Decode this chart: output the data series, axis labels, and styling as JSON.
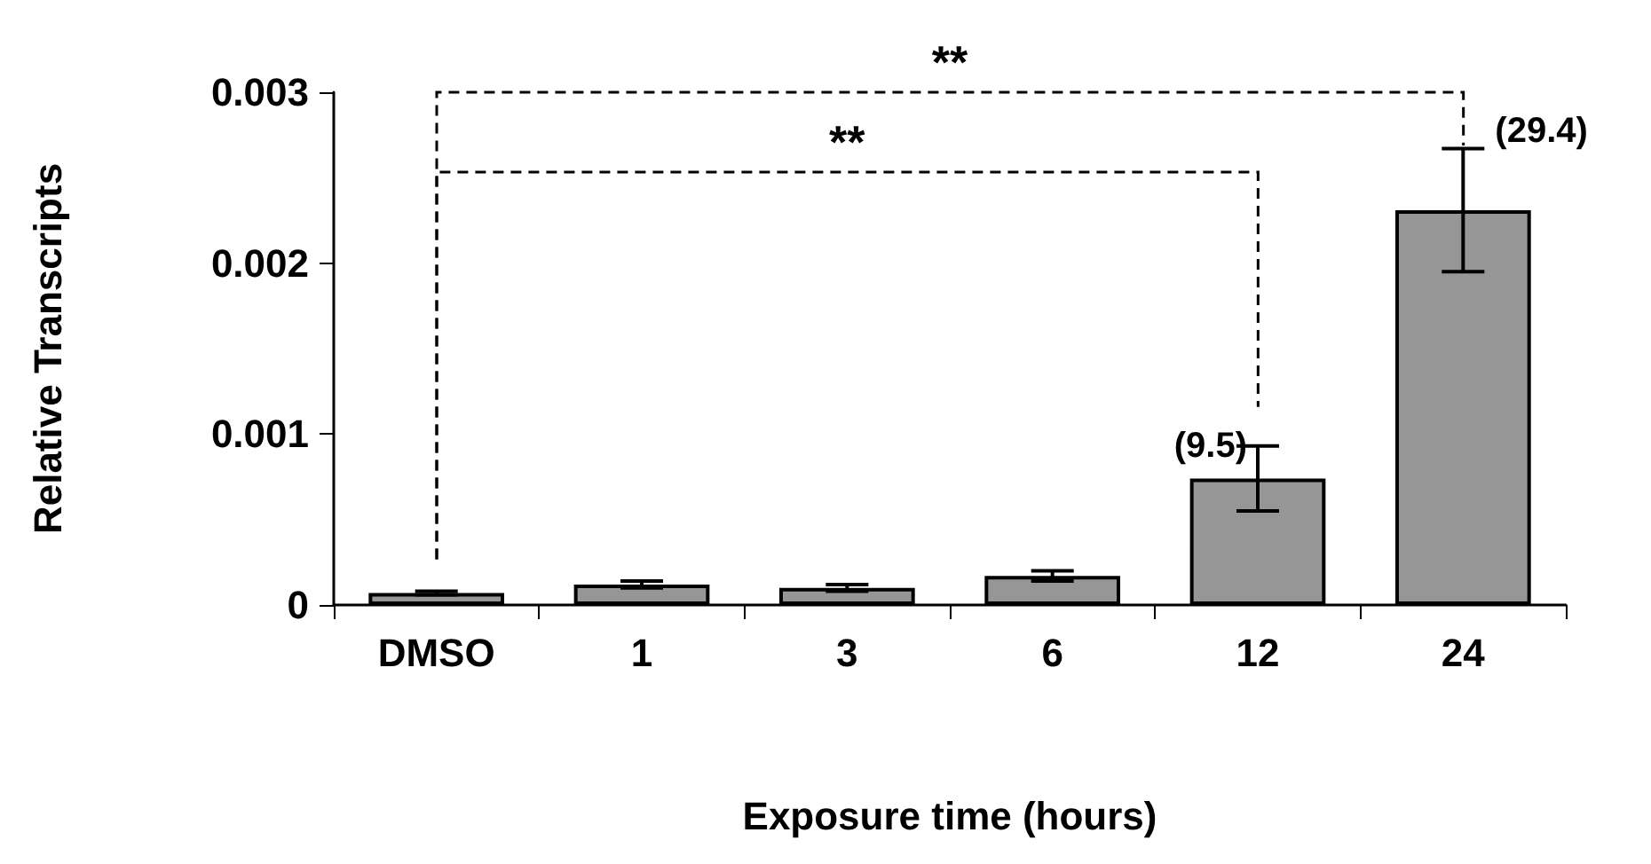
{
  "chart_data": {
    "type": "bar",
    "xlabel": "Exposure time (hours)",
    "ylabel": "Relative Transcripts",
    "categories": [
      "DMSO",
      "1",
      "3",
      "6",
      "12",
      "24"
    ],
    "values": [
      7e-05,
      0.00012,
      0.0001,
      0.00017,
      0.00074,
      0.00231
    ],
    "errors": [
      1e-05,
      2e-05,
      2e-05,
      3e-05,
      0.00019,
      [
        0.00195,
        0.00267
      ]
    ],
    "color": "#969696",
    "ylim": [
      0,
      0.003
    ],
    "yticks": [
      0,
      0.001,
      0.002,
      0.003
    ],
    "grid": false,
    "annotations": [
      "**",
      "**",
      {
        "text": "(9.5)",
        "x": "12",
        "y": 0.00093
      },
      {
        "text": "(29.4)",
        "x": "24",
        "y": 0.00267
      }
    ]
  }
}
